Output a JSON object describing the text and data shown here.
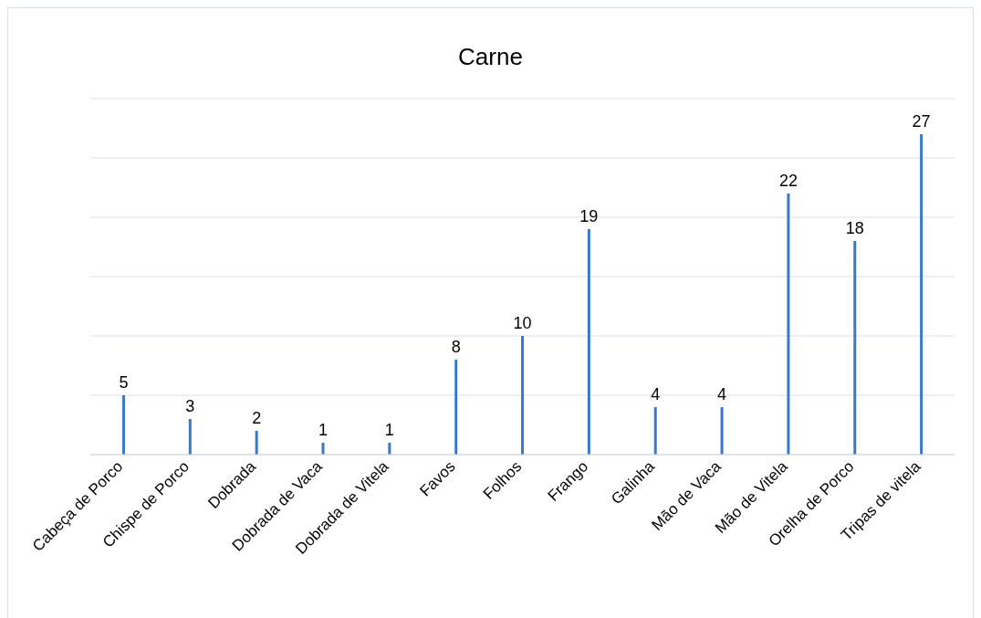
{
  "chart_data": {
    "type": "bar",
    "title": "Carne",
    "categories": [
      "Cabeça de Porco",
      "Chispe de Porco",
      "Dobrada",
      "Dobrada de Vaca",
      "Dobrada de Vitela",
      "Favos",
      "Folhos",
      "Frango",
      "Galinha",
      "Mão de Vaca",
      "Mão de Vitela",
      "Orelha de Porco",
      "Tripas de vitela"
    ],
    "values": [
      5,
      3,
      2,
      1,
      1,
      8,
      10,
      19,
      4,
      4,
      22,
      18,
      27
    ],
    "color": "#3a78c8",
    "ylim": [
      0,
      30
    ],
    "yticks": [
      {
        "value": 0,
        "label": null
      },
      {
        "value": 5,
        "label": null
      },
      {
        "value": 10,
        "label": null
      },
      {
        "value": 15,
        "label": null
      },
      {
        "value": 20,
        "label": null
      },
      {
        "value": 25,
        "label": null
      },
      {
        "value": 30,
        "label": null
      }
    ],
    "grid": "y",
    "tick_labels": "x",
    "data_labels": true
  }
}
